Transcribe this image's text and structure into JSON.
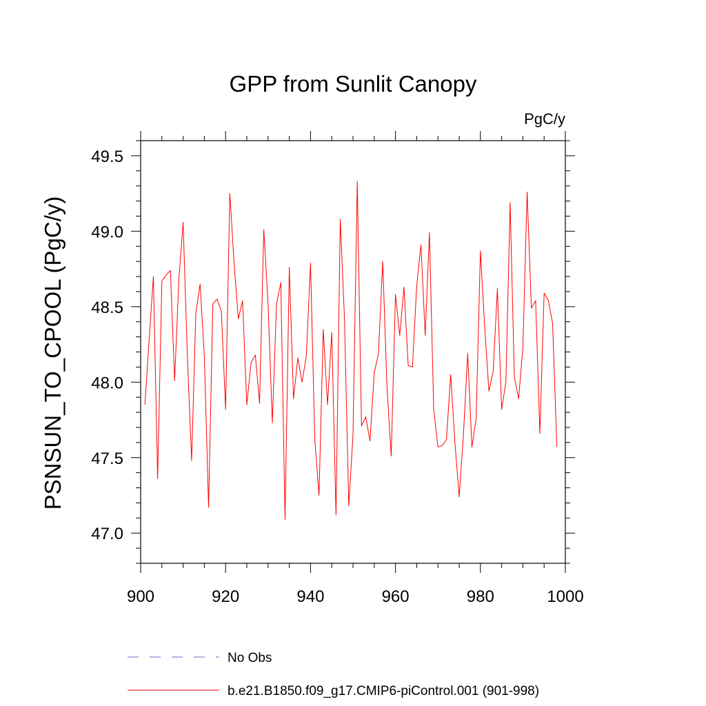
{
  "chart_data": {
    "type": "line",
    "title": "GPP from Sunlit Canopy",
    "units": "PgC/y",
    "xlabel": "",
    "ylabel": "PSNSUN_TO_CPOOL  (PgC/y)",
    "xlim": [
      900,
      1000
    ],
    "ylim": [
      46.8,
      49.6
    ],
    "x_ticks": [
      900,
      920,
      940,
      960,
      980,
      1000
    ],
    "x_tick_labels": [
      "900",
      "920",
      "940",
      "960",
      "980",
      "1000"
    ],
    "y_ticks": [
      47.0,
      47.5,
      48.0,
      48.5,
      49.0,
      49.5
    ],
    "y_tick_labels": [
      "47.0",
      "47.5",
      "48.0",
      "48.5",
      "49.0",
      "49.5"
    ],
    "series": [
      {
        "name": "No Obs",
        "color": "#6666cc",
        "style": "dashed",
        "x": [],
        "values": []
      },
      {
        "name": "b.e21.B1850.f09_g17.CMIP6-piControl.001 (901-998)",
        "color": "#ff0000",
        "style": "solid",
        "x": [
          901,
          902,
          903,
          904,
          905,
          906,
          907,
          908,
          909,
          910,
          911,
          912,
          913,
          914,
          915,
          916,
          917,
          918,
          919,
          920,
          921,
          922,
          923,
          924,
          925,
          926,
          927,
          928,
          929,
          930,
          931,
          932,
          933,
          934,
          935,
          936,
          937,
          938,
          939,
          940,
          941,
          942,
          943,
          944,
          945,
          946,
          947,
          948,
          949,
          950,
          951,
          952,
          953,
          954,
          955,
          956,
          957,
          958,
          959,
          960,
          961,
          962,
          963,
          964,
          965,
          966,
          967,
          968,
          969,
          970,
          971,
          972,
          973,
          974,
          975,
          976,
          977,
          978,
          979,
          980,
          981,
          982,
          983,
          984,
          985,
          986,
          987,
          988,
          989,
          990,
          991,
          992,
          993,
          994,
          995,
          996,
          997,
          998
        ],
        "values": [
          47.85,
          48.28,
          48.7,
          47.36,
          48.67,
          48.71,
          48.74,
          48.01,
          48.68,
          49.06,
          48.17,
          47.48,
          48.46,
          48.65,
          48.17,
          47.17,
          48.52,
          48.55,
          48.47,
          47.82,
          49.25,
          48.79,
          48.42,
          48.54,
          47.85,
          48.13,
          48.18,
          47.86,
          49.01,
          48.52,
          47.73,
          48.52,
          48.66,
          47.09,
          48.76,
          47.89,
          48.16,
          48.0,
          48.17,
          48.79,
          47.62,
          47.25,
          48.35,
          47.85,
          48.33,
          47.12,
          49.08,
          48.42,
          47.18,
          47.65,
          49.33,
          47.71,
          47.77,
          47.61,
          48.06,
          48.19,
          48.8,
          47.97,
          47.51,
          48.58,
          48.31,
          48.63,
          48.11,
          48.1,
          48.64,
          48.91,
          48.31,
          48.99,
          47.82,
          47.57,
          47.58,
          47.62,
          48.05,
          47.6,
          47.24,
          47.65,
          48.19,
          47.57,
          47.76,
          48.87,
          48.37,
          47.94,
          48.07,
          48.62,
          47.82,
          48.0,
          49.19,
          48.03,
          47.89,
          48.23,
          49.26,
          48.49,
          48.54,
          47.66,
          48.59,
          48.54,
          48.39,
          47.57
        ]
      }
    ],
    "legend_position": "bottom"
  }
}
